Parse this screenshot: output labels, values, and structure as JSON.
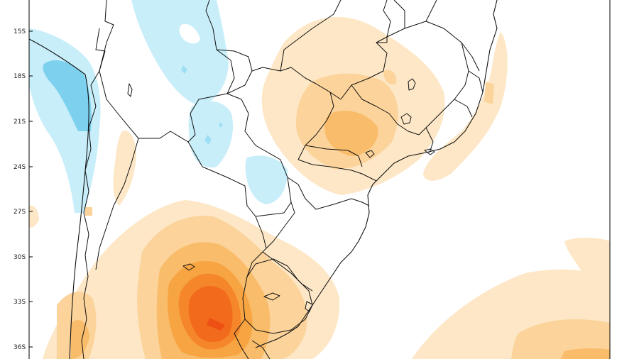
{
  "map": {
    "latitude_labels": [
      "15S",
      "18S",
      "21S",
      "24S",
      "27S",
      "30S",
      "33S",
      "36S"
    ],
    "colors": {
      "negative_light": "#c8eefa",
      "negative_mid": "#9fdff3",
      "negative_dark": "#7dd1ee",
      "positive_1": "#fde7c6",
      "positive_2": "#fcd39a",
      "positive_3": "#f9bc6a",
      "positive_4": "#f7a443",
      "positive_5": "#f5862a",
      "positive_6": "#f26a1c",
      "positive_7": "#ee4f12",
      "border": "#111111",
      "frame": "#000000"
    }
  }
}
